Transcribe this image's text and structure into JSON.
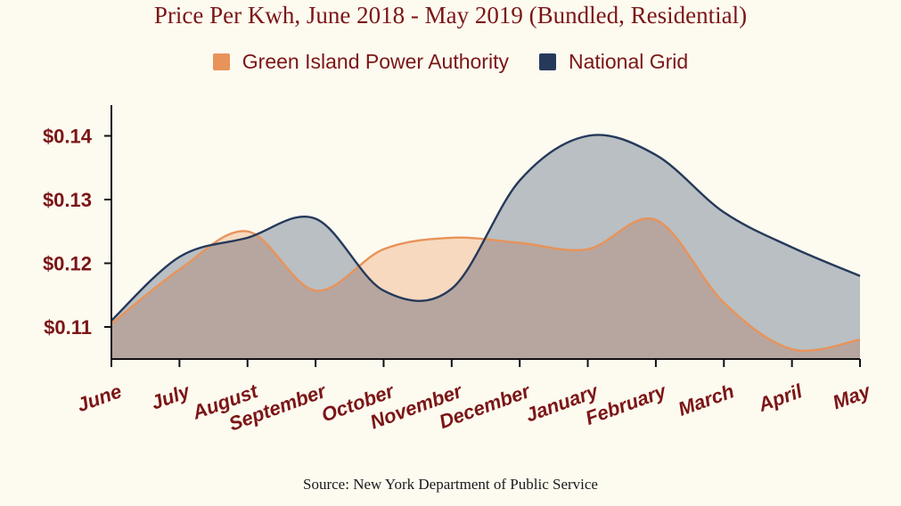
{
  "chart_data": {
    "type": "area",
    "title": "Price Per Kwh, June 2018 - May 2019 (Bundled, Residential)",
    "categories": [
      "June",
      "July",
      "August",
      "September",
      "October",
      "November",
      "December",
      "January",
      "February",
      "March",
      "April",
      "May"
    ],
    "series": [
      {
        "name": "Green Island Power Authority",
        "color": "#e8935a",
        "values": [
          0.1105,
          0.119,
          0.125,
          0.1157,
          0.1222,
          0.124,
          0.1232,
          0.1222,
          0.1268,
          0.1138,
          0.1065,
          0.108
        ]
      },
      {
        "name": "National Grid",
        "color": "#25395a",
        "values": [
          0.111,
          0.121,
          0.124,
          0.127,
          0.1157,
          0.116,
          0.133,
          0.14,
          0.137,
          0.128,
          0.1225,
          0.118
        ]
      }
    ],
    "yticks": [
      "$0.11",
      "$0.12",
      "$0.13",
      "$0.14"
    ],
    "ytick_values": [
      0.11,
      0.12,
      0.13,
      0.14
    ],
    "ylim": [
      0.105,
      0.145
    ],
    "xlabel": "",
    "ylabel": "",
    "legend_position": "top",
    "grid": false,
    "fill_colors": {
      "Green Island Power Authority": "#f7d9bf",
      "National Grid": "#b9bfc2",
      "overlap": "#b7a69f"
    },
    "text_color": "#7b1616",
    "background": "#fdfaf0"
  },
  "source": "Source: New York Department of Public Service"
}
